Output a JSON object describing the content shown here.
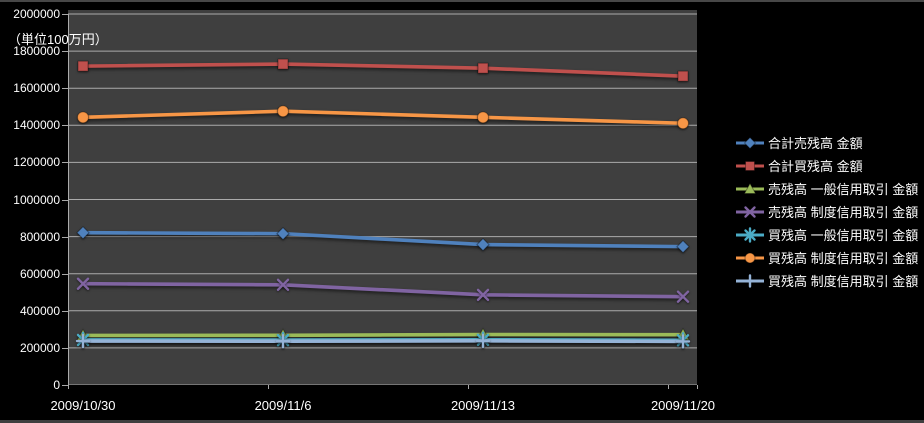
{
  "chart_data": {
    "type": "line",
    "title": "",
    "unit_label": "（単位100万円）",
    "categories": [
      "2009/10/30",
      "2009/11/6",
      "2009/11/13",
      "2009/11/20"
    ],
    "series": [
      {
        "name": "合計売残高 金額",
        "marker": "diamond",
        "color": "#4F81BD",
        "values": [
          821000,
          816000,
          757000,
          746000
        ]
      },
      {
        "name": "合計買残高 金額",
        "marker": "square",
        "color": "#C0504D",
        "values": [
          1719000,
          1730000,
          1708000,
          1665000
        ]
      },
      {
        "name": "売残高 一般信用取引 金額",
        "marker": "triangle",
        "color": "#9BBB59",
        "values": [
          267000,
          268000,
          272000,
          271000
        ]
      },
      {
        "name": "売残高 制度信用取引 金額",
        "marker": "x",
        "color": "#8064A2",
        "values": [
          546000,
          540000,
          486000,
          476000
        ]
      },
      {
        "name": "買残高 一般信用取引 金額",
        "marker": "asterisk",
        "color": "#4BACC6",
        "values": [
          243000,
          242000,
          244000,
          241000
        ]
      },
      {
        "name": "買残高 制度信用取引 金額",
        "marker": "circle",
        "color": "#F79646",
        "values": [
          1443000,
          1476000,
          1443000,
          1411000
        ]
      },
      {
        "name": "買残高 制度信用取引 金額",
        "marker": "plus",
        "color": "#95B3D7",
        "values": [
          237000,
          236000,
          238000,
          235000
        ]
      }
    ],
    "ylim": [
      0,
      2000000
    ],
    "ytick_step": 200000,
    "grid": true,
    "legend_position": "right",
    "plot_bg": "#3F3F3F",
    "page_bg": "#000000",
    "gridline_color": "#ABABAB",
    "text_color": "#FFFFFF"
  }
}
